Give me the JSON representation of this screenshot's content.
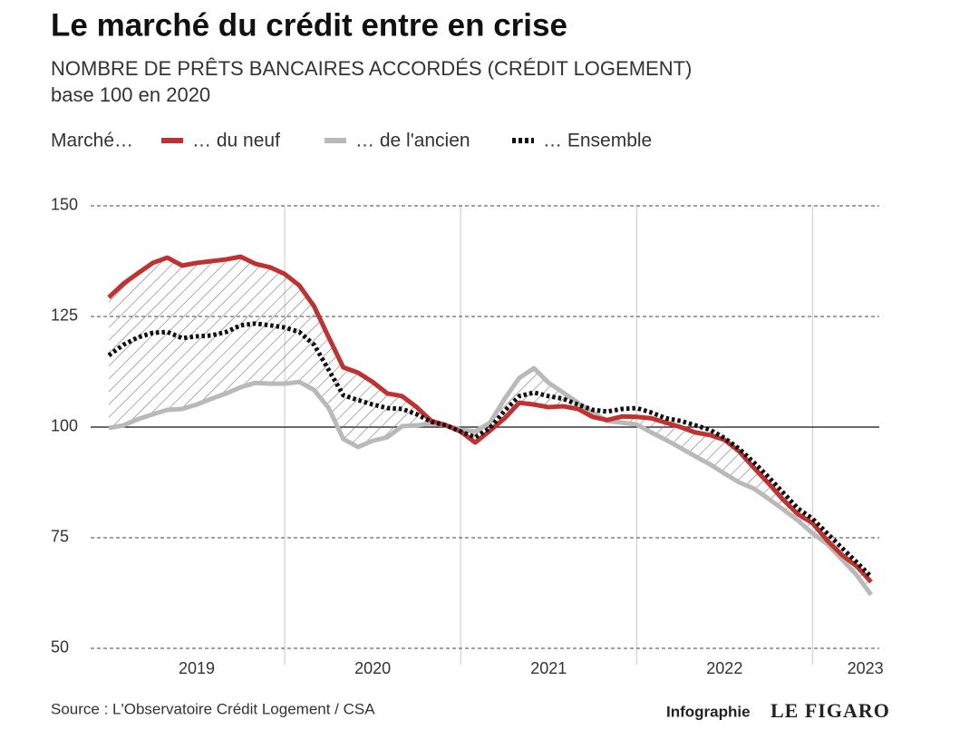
{
  "chart_data": {
    "type": "line",
    "title": "Le marché du crédit entre en crise",
    "subtitle": "NOMBRE DE PRÊTS BANCAIRES ACCORDÉS (CRÉDIT LOGEMENT)",
    "y_label": "base 100 en 2020",
    "legend_title": "Marché…",
    "source": "Source : L'Observatoire Crédit Logement / CSA",
    "credit": "Infographie",
    "logo": "LE FIGARO",
    "xlim": [
      2019,
      2023.4
    ],
    "xticks": [
      {
        "value": 2019.5,
        "label": "2019"
      },
      {
        "value": 2020.5,
        "label": "2020"
      },
      {
        "value": 2021.5,
        "label": "2021"
      },
      {
        "value": 2022.5,
        "label": "2022"
      },
      {
        "value": 2023.3,
        "label": "2023"
      }
    ],
    "xgrid": [
      2020,
      2021,
      2022,
      2023
    ],
    "ylim": [
      50,
      150
    ],
    "yticks": [
      50,
      75,
      100,
      125,
      150
    ],
    "baseline": 100,
    "grid": true,
    "x": [
      2019,
      2019.083,
      2019.167,
      2019.25,
      2019.333,
      2019.417,
      2019.5,
      2019.583,
      2019.667,
      2019.75,
      2019.833,
      2019.917,
      2020,
      2020.083,
      2020.167,
      2020.25,
      2020.333,
      2020.417,
      2020.5,
      2020.583,
      2020.667,
      2020.75,
      2020.833,
      2020.917,
      2021,
      2021.083,
      2021.167,
      2021.25,
      2021.333,
      2021.417,
      2021.5,
      2021.583,
      2021.667,
      2021.75,
      2021.833,
      2021.917,
      2022,
      2022.083,
      2022.167,
      2022.25,
      2022.333,
      2022.417,
      2022.5,
      2022.583,
      2022.667,
      2022.75,
      2022.833,
      2022.917,
      2023,
      2023.083,
      2023.167,
      2023.25,
      2023.333
    ],
    "series": [
      {
        "name": "… du neuf",
        "color": "#c0312f",
        "style": "solid",
        "values": [
          129.3,
          132.4,
          134.8,
          137.1,
          138.3,
          136.5,
          137.1,
          137.5,
          137.9,
          138.5,
          136.9,
          136.1,
          134.6,
          132.0,
          127.3,
          120.3,
          113.5,
          112.3,
          110.2,
          107.6,
          107.0,
          104.5,
          101.4,
          100.4,
          99.0,
          96.5,
          99.2,
          102.0,
          105.5,
          105.1,
          104.5,
          104.7,
          104.1,
          102.3,
          101.6,
          102.4,
          102.3,
          102.0,
          101.0,
          100.0,
          98.8,
          98.2,
          97.1,
          94.5,
          90.8,
          87.3,
          83.6,
          80.3,
          78.3,
          74.4,
          71.1,
          68.6,
          65.0
        ]
      },
      {
        "name": "… de l'ancien",
        "color": "#b9b9b9",
        "style": "solid",
        "values": [
          99.8,
          100.4,
          101.8,
          102.9,
          103.9,
          104.1,
          105.1,
          106.4,
          107.6,
          109.0,
          110.0,
          109.8,
          109.8,
          110.2,
          108.4,
          104.3,
          97.3,
          95.5,
          96.9,
          97.7,
          100.2,
          100.4,
          100.8,
          100.4,
          99.4,
          99.0,
          101.0,
          106.4,
          111.1,
          113.3,
          110.0,
          107.8,
          105.5,
          103.3,
          101.4,
          101.0,
          100.6,
          98.8,
          97.1,
          95.3,
          93.4,
          91.6,
          89.5,
          87.5,
          86.1,
          83.8,
          81.4,
          78.9,
          76.0,
          73.6,
          70.1,
          66.6,
          62.1
        ]
      },
      {
        "name": "… Ensemble",
        "color": "#111111",
        "style": "dotted",
        "values": [
          116.2,
          118.6,
          120.3,
          121.3,
          121.5,
          120.1,
          120.5,
          120.7,
          121.5,
          123.0,
          123.4,
          123.0,
          122.5,
          121.5,
          118.6,
          112.9,
          107.2,
          106.1,
          105.1,
          104.3,
          104.1,
          102.9,
          101.2,
          100.4,
          99.0,
          97.7,
          99.8,
          103.7,
          107.0,
          107.8,
          107.0,
          106.4,
          105.1,
          103.9,
          103.5,
          104.1,
          104.3,
          103.3,
          102.0,
          101.4,
          100.4,
          99.4,
          97.5,
          95.1,
          92.0,
          88.7,
          85.2,
          81.6,
          79.3,
          76.0,
          72.7,
          69.5,
          66.2
        ]
      }
    ]
  }
}
